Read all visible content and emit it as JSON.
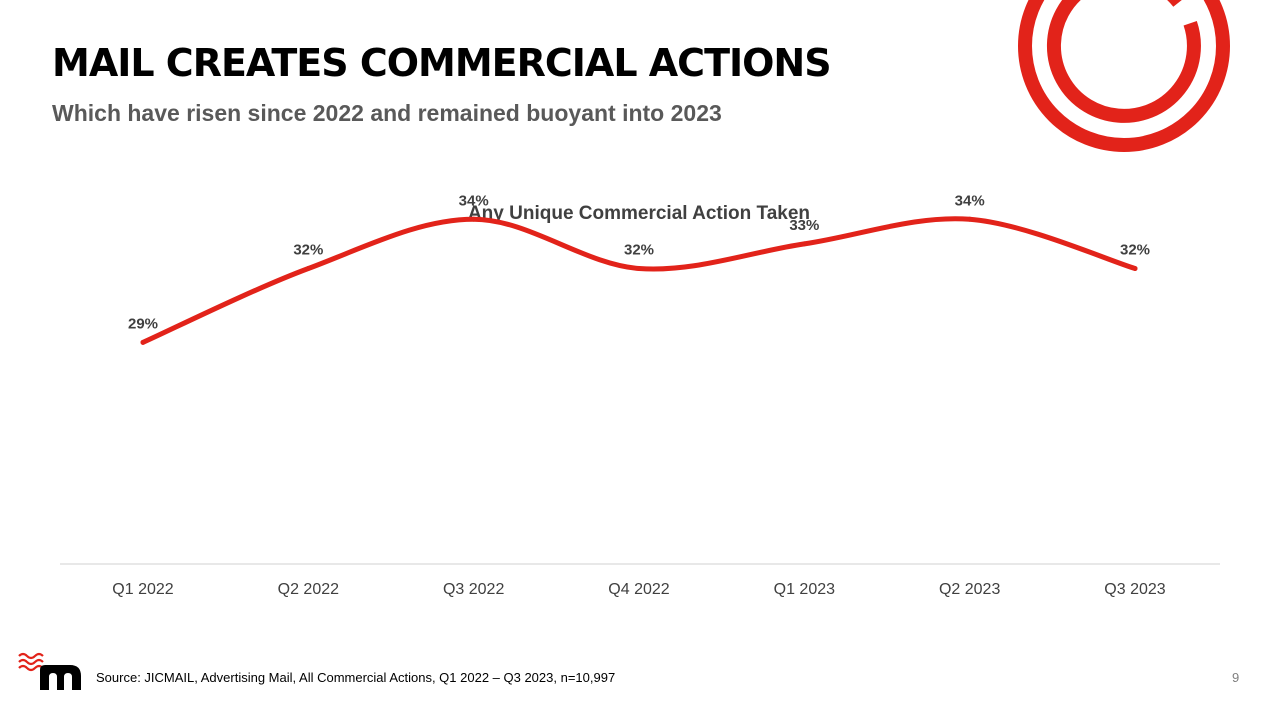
{
  "header": {
    "title": "MAIL CREATES COMMERCIAL ACTIONS",
    "subtitle": "Which have risen since 2022 and remained buoyant into 2023"
  },
  "chart_data": {
    "type": "line",
    "title": "Any Unique Commercial Action Taken",
    "categories": [
      "Q1 2022",
      "Q2 2022",
      "Q3 2022",
      "Q4 2022",
      "Q1 2023",
      "Q2 2023",
      "Q3 2023"
    ],
    "series": [
      {
        "values": [
          29,
          32,
          34,
          32,
          33,
          34,
          32
        ],
        "labels": [
          "29%",
          "32%",
          "34%",
          "32%",
          "33%",
          "34%",
          "32%"
        ]
      }
    ],
    "value_unit": "%",
    "smooth": true,
    "ylim": [
      20,
      36
    ],
    "grid": false,
    "y_axis_visible": false,
    "legend": "none"
  },
  "footer": {
    "source": "Source: JICMAIL, Advertising Mail, All Commercial Actions, Q1 2022 – Q3 2023, n=10,997",
    "page_number": "9"
  },
  "colors": {
    "accent": "#e2231a",
    "title": "#000000",
    "subtitle": "#595959",
    "axis_text": "#404040",
    "axis_line": "#d9d9d9"
  },
  "icons": {
    "brand_mark": "red-concentric-rings-icon",
    "footer_logo": "jicmail-m-logo-icon"
  }
}
